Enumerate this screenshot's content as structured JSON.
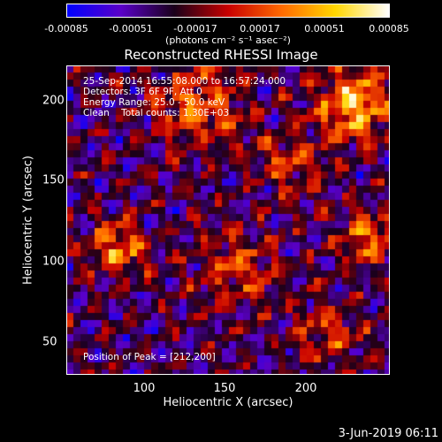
{
  "colorbar": {
    "ticks": [
      "-0.00085",
      "-0.00051",
      "-0.00017",
      "0.00017",
      "0.00051",
      "0.00085"
    ],
    "tick_values": [
      -0.00085,
      -0.00051,
      -0.00017,
      0.00017,
      0.00051,
      0.00085
    ],
    "unit": "(photons cm⁻² s⁻¹ asec⁻²)",
    "colors": [
      "#0000ff",
      "#5a00c8",
      "#1a001a",
      "#c80000",
      "#ff6a00",
      "#ffd700",
      "#ffffff"
    ]
  },
  "chart_data": {
    "type": "heatmap",
    "title": "Reconstructed RHESSI Image",
    "xlabel": "Heliocentric X (arcsec)",
    "ylabel": "Heliocentric Y (arcsec)",
    "xlim": [
      50,
      243
    ],
    "ylim": [
      30,
      225
    ],
    "xticks": [
      100,
      150,
      200
    ],
    "yticks": [
      50,
      100,
      150,
      200
    ],
    "annotations": [
      "25-Sep-2014 16:55:08.000 to 16:57:24.000",
      "Detectors: 3F 6F 9F, Att 0",
      "Energy Range: 25.0 - 50.0 keV",
      "Clean    Total counts: 1.30E+03"
    ],
    "peak_label": "Position of Peak = [212,200]",
    "peak": [
      212,
      200
    ],
    "vmin": -0.00085,
    "vmax": 0.00085
  },
  "footer": "3-Jun-2019 06:11"
}
